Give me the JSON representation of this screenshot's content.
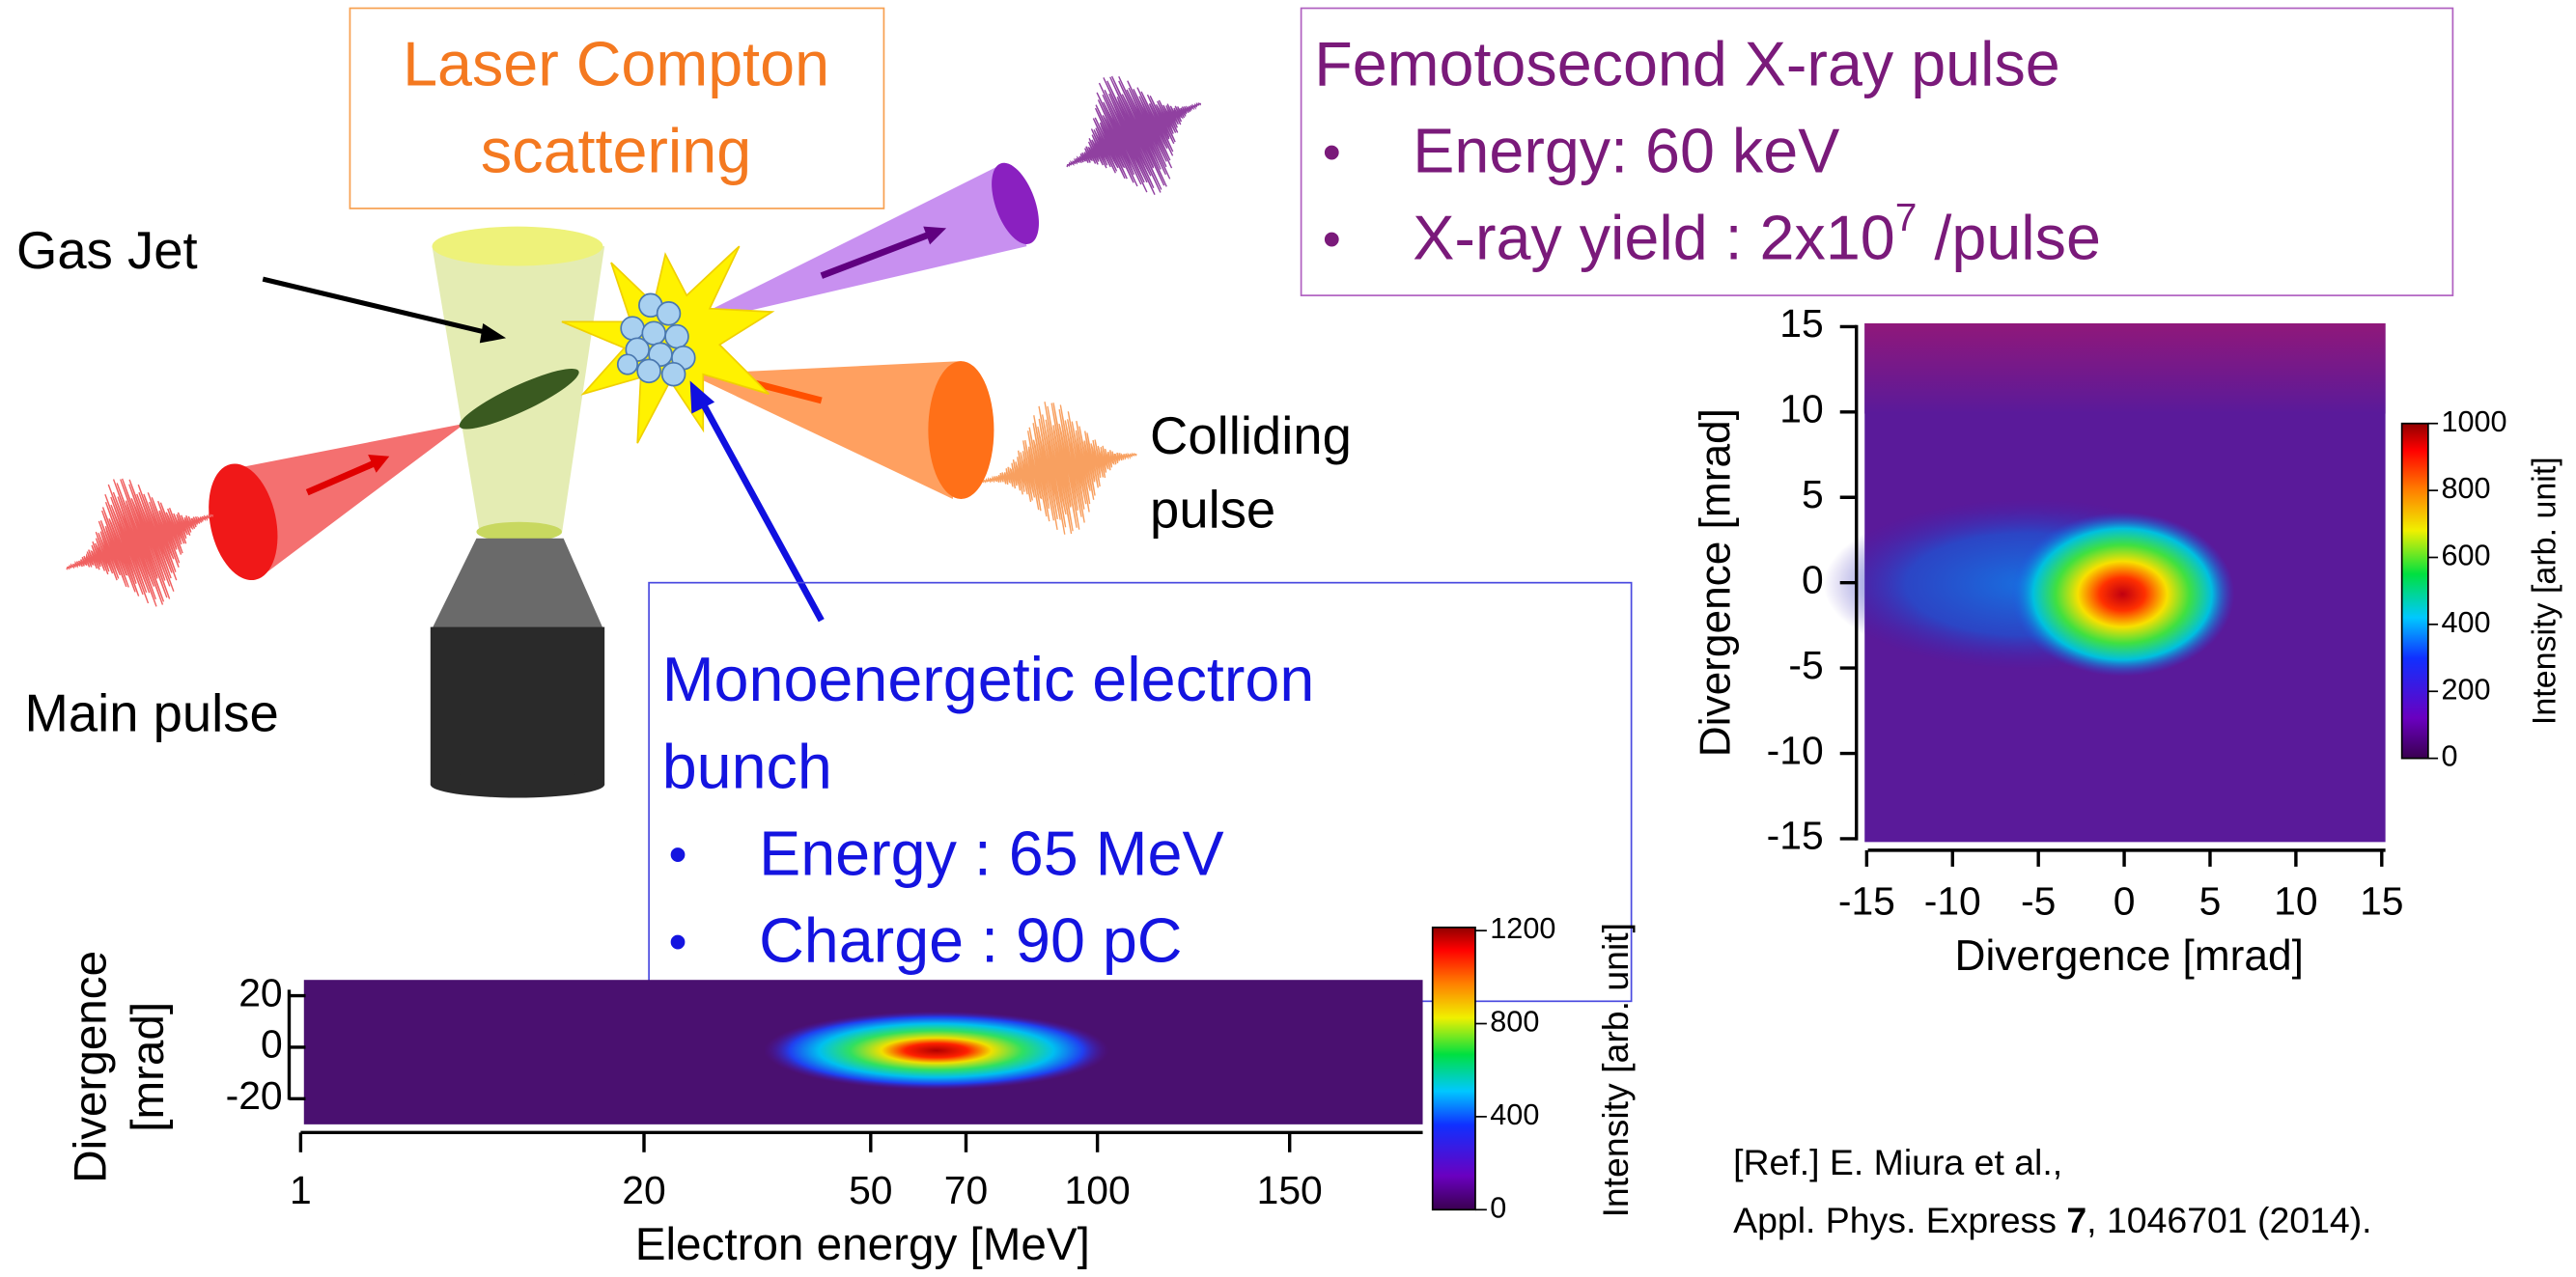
{
  "labels": {
    "compton": [
      "Laser Compton",
      "scattering"
    ],
    "gas_jet": "Gas Jet",
    "main_pulse": "Main pulse",
    "colliding_pulse": [
      "Colliding",
      "pulse"
    ]
  },
  "xray_box": {
    "title": "Femotosecond X-ray pulse",
    "bullet": "•",
    "items": [
      {
        "text": "Energy: 60 keV"
      },
      {
        "text": "X-ray yield : 2x10",
        "sup": "7",
        "after": " /pulse"
      }
    ]
  },
  "electron_box": {
    "title": [
      "Monoenergetic electron",
      "bunch"
    ],
    "bullet": "•",
    "items": [
      "Energy : 65 MeV",
      "Charge : 90 pC"
    ]
  },
  "xray_image": {
    "x_label": "Divergence [mrad]",
    "y_label": "Divergence [mrad]",
    "x_ticks": [
      -15,
      -10,
      -5,
      0,
      5,
      10,
      15
    ],
    "y_ticks": [
      15,
      10,
      5,
      0,
      -5,
      -10,
      -15
    ],
    "colorbar_label": "Intensity [arb. unit]",
    "colorbar_ticks": [
      1000,
      800,
      600,
      400,
      200,
      0
    ]
  },
  "electron_spectrum": {
    "y_label": [
      "Divergence",
      "[mrad]"
    ],
    "y_ticks": [
      20,
      0,
      -20
    ],
    "x_label": "Electron energy [MeV]",
    "x_ticks": [
      1,
      20,
      50,
      70,
      100,
      150
    ],
    "colorbar_label": "Intensity [arb. unit]",
    "colorbar_ticks": [
      1200,
      800,
      400,
      0
    ]
  },
  "reference": {
    "line1": "[Ref.] E. Miura et al.,",
    "line2": {
      "before": "Appl. Phys. Express ",
      "bold": "7",
      "after": ", 1046701 (2014)."
    }
  }
}
